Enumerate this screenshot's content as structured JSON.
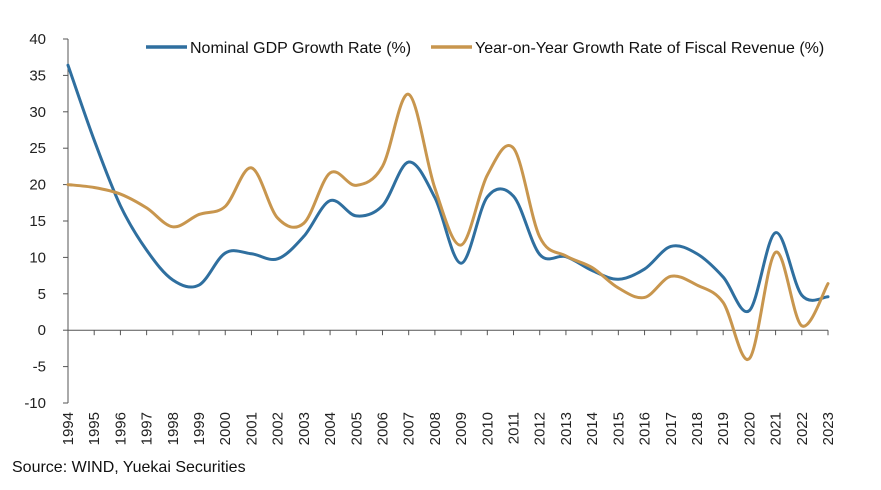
{
  "chart_data": {
    "type": "line",
    "x": [
      "1994",
      "1995",
      "1996",
      "1997",
      "1998",
      "1999",
      "2000",
      "2001",
      "2002",
      "2003",
      "2004",
      "2005",
      "2006",
      "2007",
      "2008",
      "2009",
      "2010",
      "2011",
      "2012",
      "2013",
      "2014",
      "2015",
      "2016",
      "2017",
      "2018",
      "2019",
      "2020",
      "2021",
      "2022",
      "2023"
    ],
    "series": [
      {
        "name": "Nominal GDP Growth Rate (%)",
        "color": "#2f6f9f",
        "values": [
          36.4,
          26.1,
          17.1,
          11.0,
          6.9,
          6.2,
          10.6,
          10.5,
          9.8,
          12.9,
          17.8,
          15.7,
          17.1,
          23.1,
          18.2,
          9.2,
          18.3,
          18.4,
          10.4,
          10.1,
          8.2,
          7.0,
          8.4,
          11.5,
          10.5,
          7.3,
          2.7,
          13.4,
          4.8,
          4.6
        ]
      },
      {
        "name": "Year-on-Year Growth Rate of Fiscal Revenue (%)",
        "color": "#c8964e",
        "values": [
          20.0,
          19.6,
          18.7,
          16.8,
          14.2,
          15.9,
          17.0,
          22.3,
          15.4,
          14.7,
          21.6,
          19.9,
          22.5,
          32.4,
          19.5,
          11.7,
          21.3,
          25.0,
          12.8,
          10.2,
          8.6,
          5.8,
          4.5,
          7.4,
          6.2,
          3.8,
          -3.9,
          10.7,
          0.6,
          6.4
        ]
      }
    ],
    "title": "",
    "xlabel": "",
    "ylabel": "",
    "ylim": [
      -10,
      40
    ],
    "yticks": [
      "40",
      "35",
      "30",
      "25",
      "20",
      "15",
      "10",
      "5",
      "0",
      "-5",
      "-10"
    ],
    "grid": false,
    "legend_position": "top-right"
  },
  "source": "Source: WIND, Yuekai Securities"
}
